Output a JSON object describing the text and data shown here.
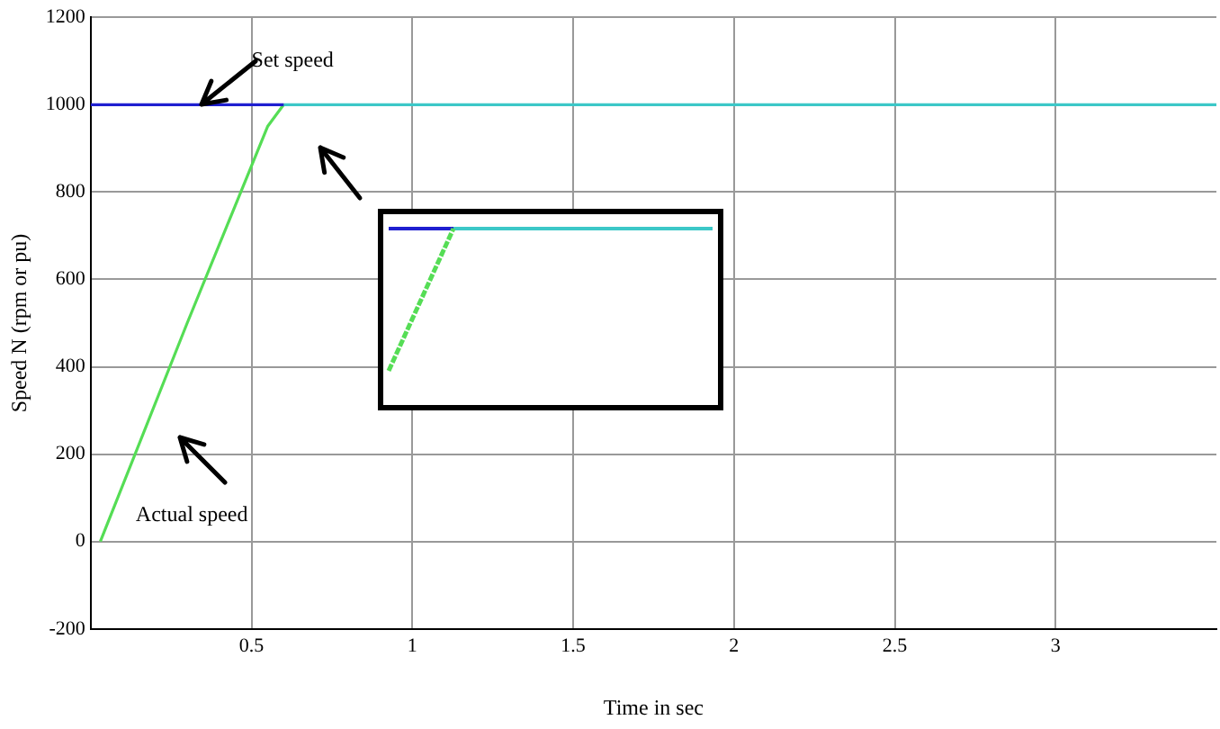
{
  "chart_data": [
    {
      "type": "line",
      "xlabel": "Time in sec",
      "ylabel": "Speed N (rpm or pu)",
      "xlim": [
        0,
        3.5
      ],
      "xticks": [
        0.5,
        1,
        1.5,
        2,
        2.5,
        3
      ],
      "ylim": [
        -200,
        1200
      ],
      "yticks": [
        -200,
        0,
        200,
        400,
        600,
        800,
        1000,
        1200
      ],
      "grid": true,
      "legend": false,
      "series": [
        {
          "name": "Set speed",
          "color": "#1f1fd0",
          "x": [
            0,
            0.6
          ],
          "values": [
            1000,
            1000
          ]
        },
        {
          "color": "#3cc8c8",
          "x": [
            0.6,
            3.5
          ],
          "values": [
            1000,
            1000
          ]
        },
        {
          "name": "Actual speed",
          "color": "#55dd55",
          "x": [
            0.03,
            0.3,
            0.55,
            0.6
          ],
          "values": [
            0,
            500,
            950,
            1000
          ]
        }
      ]
    }
  ]
}
